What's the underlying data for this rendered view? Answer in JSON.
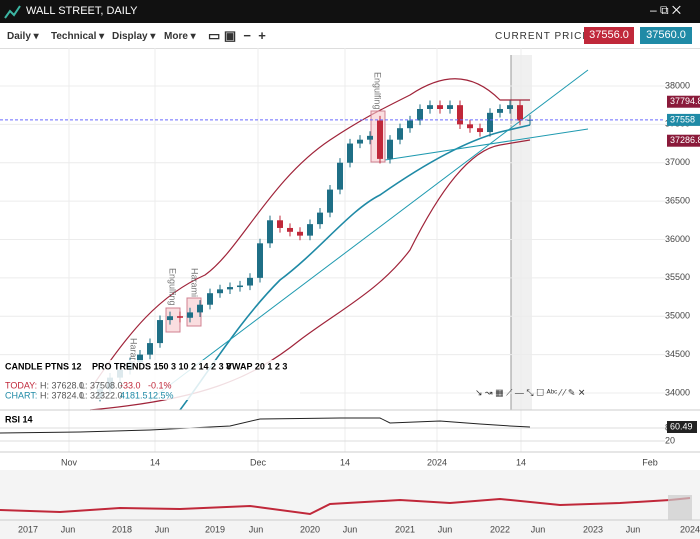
{
  "window": {
    "title": "WALL STREET, DAILY"
  },
  "toolbar": {
    "menus": [
      "Daily",
      "Technical",
      "Display",
      "More"
    ],
    "current_price_label": "CURRENT PRICE:",
    "sell": "37556.0",
    "buy": "37560.0"
  },
  "chart": {
    "ylim": [
      33700,
      38500
    ],
    "yticks": [
      38000,
      37500,
      37000,
      36500,
      36000,
      35500,
      35000,
      34500,
      34000
    ],
    "dates": [
      "Nov",
      "14",
      "Dec",
      "14",
      "2024",
      "14",
      "Feb"
    ],
    "patterns": [
      "Engulfing",
      "Harami",
      "Engulfing",
      "Harami"
    ],
    "price_tags": [
      {
        "value": 37794.8,
        "label": "37794.8"
      },
      {
        "value": 37558,
        "label": "37558"
      },
      {
        "value": 37286.8,
        "label": "37286.8"
      }
    ],
    "candles": {
      "open": [
        33950,
        34050,
        34200,
        34300,
        34400,
        34500,
        34650,
        34950,
        35000,
        34980,
        35050,
        35150,
        35300,
        35350,
        35380,
        35400,
        35500,
        35950,
        36250,
        36150,
        36100,
        36050,
        36200,
        36350,
        36650,
        37000,
        37250,
        37300,
        37550,
        37050,
        37300,
        37450,
        37550,
        37700,
        37750,
        37700,
        37750,
        37500,
        37450,
        37400,
        37650,
        37700,
        37750,
        37550
      ],
      "high": [
        34110,
        34260,
        34360,
        34460,
        34560,
        34710,
        35010,
        35060,
        35060,
        35110,
        35210,
        35360,
        35410,
        35440,
        35460,
        35560,
        36010,
        36310,
        36310,
        36210,
        36160,
        36260,
        36410,
        36710,
        37060,
        37310,
        37360,
        37410,
        37610,
        37360,
        37510,
        37610,
        37760,
        37810,
        37810,
        37810,
        37810,
        37560,
        37510,
        37710,
        37760,
        37810,
        37810,
        37620
      ],
      "low": [
        33890,
        33990,
        34140,
        34240,
        34340,
        34440,
        34590,
        34890,
        34920,
        34920,
        34990,
        35090,
        35240,
        35290,
        35320,
        35340,
        35440,
        35890,
        36090,
        36040,
        35990,
        35990,
        36140,
        36290,
        36590,
        36940,
        37190,
        37240,
        36990,
        36990,
        37240,
        37390,
        37490,
        37640,
        37640,
        37640,
        37440,
        37390,
        37340,
        37340,
        37590,
        37640,
        37490,
        37490
      ],
      "close": [
        34050,
        34200,
        34300,
        34400,
        34500,
        34650,
        34950,
        35000,
        34980,
        35050,
        35150,
        35300,
        35350,
        35380,
        35400,
        35500,
        35950,
        36250,
        36150,
        36100,
        36050,
        36200,
        36350,
        36650,
        37000,
        37250,
        37300,
        37350,
        37050,
        37300,
        37450,
        37550,
        37700,
        37750,
        37700,
        37750,
        37500,
        37450,
        37400,
        37650,
        37700,
        37750,
        37550,
        37560
      ]
    },
    "up_color": "#1f6f86",
    "down_color": "#c0283a"
  },
  "indicators": {
    "names": [
      "CANDLE PTNS 12",
      "PRO TRENDS 150 3 10 2 14 2 3 8",
      "VWAP 20 1 2 3"
    ],
    "today": [
      "TODAY:",
      "H: 37628.0",
      "L: 37508.0",
      "-33.0",
      "-0.1%"
    ],
    "chart": [
      "CHART:",
      "H: 37824.0",
      "L: 32322.0",
      "4181.5",
      "12.5%"
    ]
  },
  "rsi": {
    "label": "RSI 14",
    "ylim": [
      0,
      100
    ],
    "yticks": [
      80,
      20
    ],
    "value": "60.49"
  },
  "navigator": {
    "labels": [
      "2017",
      "Jun",
      "2018",
      "Jun",
      "2019",
      "Jun",
      "2020",
      "Jun",
      "2021",
      "Jun",
      "2022",
      "Jun",
      "2023",
      "Jun",
      "2024"
    ]
  }
}
